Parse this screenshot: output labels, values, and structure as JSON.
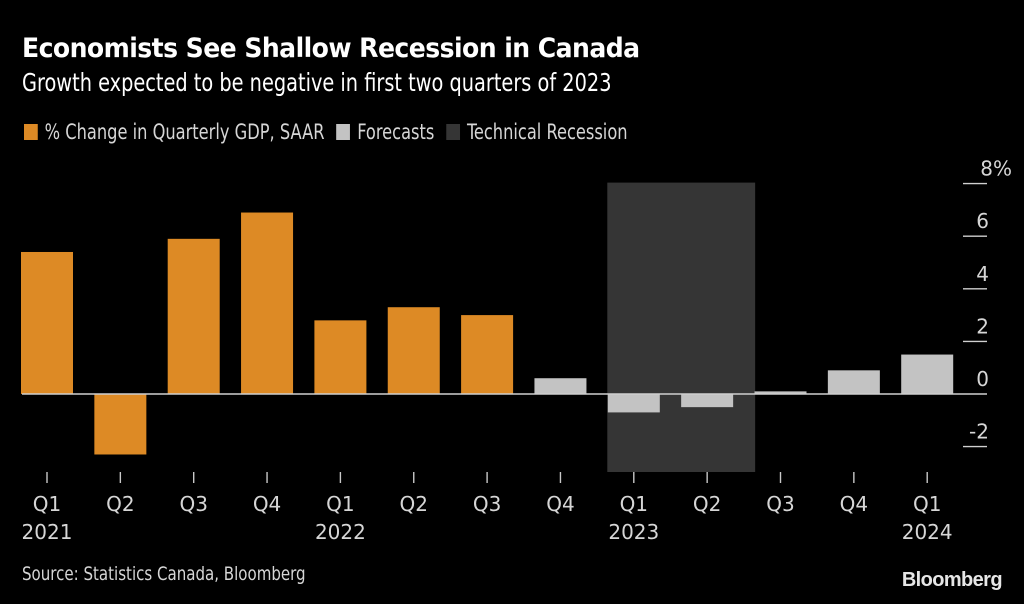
{
  "header": {
    "title": "Economists See Shallow Recession in Canada",
    "subtitle": "Growth expected to be negative in first two quarters of 2023"
  },
  "legend": [
    {
      "label": "% Change in Quarterly GDP, SAAR",
      "color": "#DD8A25"
    },
    {
      "label": "Forecasts",
      "color": "#C3C3C3"
    },
    {
      "label": "Technical Recession",
      "color": "#353535"
    }
  ],
  "footer": {
    "source": "Source: Statistics Canada, Bloomberg",
    "brand": "Bloomberg"
  },
  "chart_data": {
    "type": "bar",
    "title": "Economists See Shallow Recession in Canada",
    "subtitle": "Growth expected to be negative in first two quarters of 2023",
    "xlabel": "",
    "ylabel": "% Change in Quarterly GDP, SAAR",
    "ylim": [
      -3,
      8
    ],
    "yticks": [
      -2,
      0,
      2,
      4,
      6,
      8
    ],
    "ytick_labels": [
      "-2",
      "0",
      "2",
      "4",
      "6",
      "8%"
    ],
    "y_axis_side": "right",
    "grid": false,
    "legend_position": "top-left",
    "categories": [
      "Q1 2021",
      "Q2 2021",
      "Q3 2021",
      "Q4 2021",
      "Q1 2022",
      "Q2 2022",
      "Q3 2022",
      "Q4 2022",
      "Q1 2023",
      "Q2 2023",
      "Q3 2023",
      "Q4 2023",
      "Q1 2024"
    ],
    "quarter_labels": [
      "Q1",
      "Q2",
      "Q3",
      "Q4",
      "Q1",
      "Q2",
      "Q3",
      "Q4",
      "Q1",
      "Q2",
      "Q3",
      "Q4",
      "Q1"
    ],
    "year_labels": [
      "2021",
      "",
      "",
      "",
      "2022",
      "",
      "",
      "",
      "2023",
      "",
      "",
      "",
      "2024"
    ],
    "series": [
      {
        "name": "% Change in Quarterly GDP, SAAR",
        "color": "#DD8A25",
        "values": [
          5.4,
          -2.3,
          5.9,
          6.9,
          2.8,
          3.3,
          3.0,
          null,
          null,
          null,
          null,
          null,
          null
        ]
      },
      {
        "name": "Forecasts",
        "color": "#C3C3C3",
        "values": [
          null,
          null,
          null,
          null,
          null,
          null,
          null,
          0.6,
          -0.7,
          -0.5,
          0.1,
          0.9,
          1.5
        ]
      }
    ],
    "shaded_regions": [
      {
        "name": "Technical Recession",
        "color": "#353535",
        "from": "Q1 2023",
        "to": "Q2 2023"
      }
    ]
  }
}
